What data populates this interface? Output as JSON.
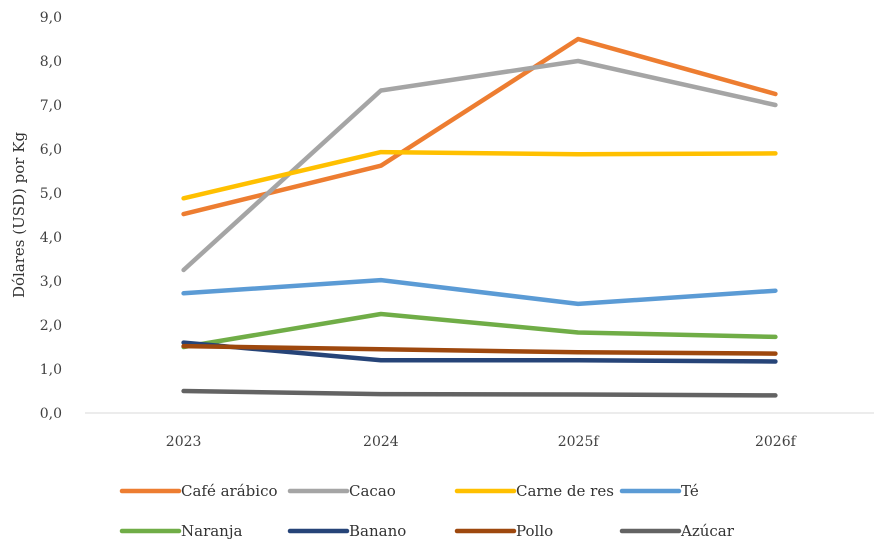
{
  "chart_data": {
    "type": "line",
    "title": "",
    "xlabel": "",
    "ylabel": "Dólares (USD) por Kg",
    "ylim": [
      0,
      9
    ],
    "yticks": [
      "0,0",
      "1,0",
      "2,0",
      "3,0",
      "4,0",
      "5,0",
      "6,0",
      "7,0",
      "8,0",
      "9,0"
    ],
    "categories": [
      "2023",
      "2024",
      "2025f",
      "2026f"
    ],
    "grid": false,
    "legend_position": "bottom",
    "series": [
      {
        "name": "Café arábico",
        "color": "#ED7D31",
        "values": [
          4.52,
          5.62,
          8.5,
          7.25
        ]
      },
      {
        "name": "Cacao",
        "color": "#A5A5A5",
        "values": [
          3.25,
          7.33,
          8.0,
          7.0
        ]
      },
      {
        "name": "Carne de res",
        "color": "#FFC000",
        "values": [
          4.88,
          5.93,
          5.88,
          5.9
        ]
      },
      {
        "name": "Té",
        "color": "#5B9BD5",
        "values": [
          2.72,
          3.02,
          2.48,
          2.78
        ]
      },
      {
        "name": "Naranja",
        "color": "#70AD47",
        "values": [
          1.5,
          2.25,
          1.83,
          1.73
        ]
      },
      {
        "name": "Banano",
        "color": "#264478",
        "values": [
          1.6,
          1.2,
          1.2,
          1.17
        ]
      },
      {
        "name": "Pollo",
        "color": "#9E480E",
        "values": [
          1.52,
          1.45,
          1.38,
          1.35
        ]
      },
      {
        "name": "Azúcar",
        "color": "#636363",
        "values": [
          0.5,
          0.43,
          0.42,
          0.4
        ]
      }
    ]
  }
}
